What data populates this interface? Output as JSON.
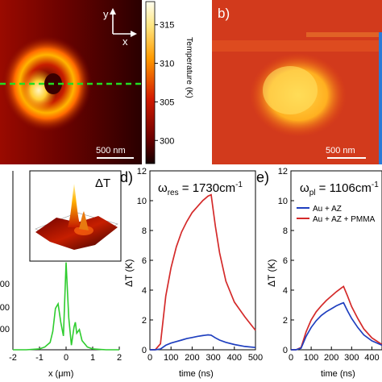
{
  "panel_a": {
    "axis_y": "y",
    "axis_x": "x",
    "scalebar": "500 nm",
    "colorbar": {
      "label": "Temperature (K)",
      "ticks": [
        "315",
        "310",
        "305",
        "300"
      ]
    }
  },
  "panel_b": {
    "label": "b)",
    "scalebar": "500 nm"
  },
  "panel_c": {
    "inset_label": "ΔT",
    "xlabel": "x (μm)",
    "xticks": [
      "-2",
      "-1",
      "0",
      "1",
      "2"
    ],
    "yticks": [
      "00",
      "00",
      "00"
    ]
  },
  "panel_d": {
    "label": "d)",
    "title": "ωres = 1730cm-1",
    "title_main": "ω",
    "title_sub": "res",
    "title_rest": " = 1730cm",
    "title_sup": "-1",
    "ylabel": "ΔT (K)",
    "xlabel": "time (ns)",
    "yticks": [
      "0",
      "2",
      "4",
      "6",
      "8",
      "10",
      "12"
    ],
    "xticks": [
      "0",
      "100",
      "200",
      "300",
      "400",
      "500"
    ]
  },
  "panel_e": {
    "label": "e)",
    "title": "ωpl = 1106cm-1",
    "title_main": "ω",
    "title_sub": "pl",
    "title_rest": " = 1106cm",
    "title_sup": "-1",
    "ylabel": "ΔT (K)",
    "xlabel": "time (ns)",
    "yticks": [
      "0",
      "2",
      "4",
      "6",
      "8",
      "10",
      "12"
    ],
    "xticks": [
      "0",
      "100",
      "200",
      "300",
      "400"
    ]
  },
  "colors": {
    "red": "#d42a2a",
    "blue": "#1f3fbf",
    "green": "#2ecc2e",
    "dashed_line": "#22dd22"
  },
  "chart_data": [
    {
      "type": "heatmap",
      "panel": "a",
      "description_values": "temperature map, colorbar range ~297 to ~318 K",
      "colorbar_range": [
        297,
        318
      ],
      "colorbar_label": "Temperature (K)"
    },
    {
      "type": "heatmap",
      "panel": "b"
    },
    {
      "type": "line",
      "panel": "c",
      "xlabel": "x (μm)",
      "xlim": [
        -2,
        2
      ],
      "x": [
        -2.0,
        -1.5,
        -1.0,
        -0.8,
        -0.6,
        -0.5,
        -0.4,
        -0.3,
        -0.2,
        -0.1,
        0.0,
        0.1,
        0.2,
        0.3,
        0.35,
        0.4,
        0.5,
        0.6,
        0.8,
        1.0,
        1.5,
        2.0
      ],
      "series": [
        {
          "values": [
            0.0,
            0.0,
            0.01,
            0.03,
            0.08,
            0.2,
            0.45,
            0.5,
            0.3,
            0.15,
            0.95,
            0.35,
            0.05,
            0.25,
            0.3,
            0.18,
            0.22,
            0.1,
            0.03,
            0.01,
            0.0,
            0.0
          ]
        }
      ]
    },
    {
      "type": "line",
      "panel": "d",
      "xlabel": "time (ns)",
      "ylabel": "ΔT (K)",
      "xlim": [
        0,
        500
      ],
      "ylim": [
        0,
        12
      ],
      "x": [
        0,
        25,
        50,
        75,
        100,
        125,
        150,
        175,
        200,
        225,
        250,
        275,
        290,
        310,
        330,
        360,
        400,
        450,
        500
      ],
      "series": [
        {
          "color": "red",
          "values": [
            0.0,
            0.0,
            0.4,
            3.6,
            5.5,
            6.9,
            7.9,
            8.6,
            9.2,
            9.6,
            10.0,
            10.3,
            10.4,
            8.3,
            6.5,
            4.6,
            3.2,
            2.2,
            1.3
          ]
        },
        {
          "color": "blue",
          "values": [
            0.0,
            0.0,
            0.05,
            0.3,
            0.45,
            0.55,
            0.65,
            0.75,
            0.82,
            0.9,
            0.95,
            1.0,
            0.98,
            0.8,
            0.65,
            0.5,
            0.35,
            0.22,
            0.15
          ]
        }
      ]
    },
    {
      "type": "line",
      "panel": "e",
      "xlabel": "time (ns)",
      "ylabel": "ΔT (K)",
      "xlim": [
        0,
        450
      ],
      "ylim": [
        0,
        12
      ],
      "legend": {
        "position": "top-right",
        "entries": [
          "Au + AZ",
          "Au + AZ + PMMA"
        ]
      },
      "x": [
        0,
        25,
        50,
        75,
        100,
        125,
        150,
        175,
        200,
        225,
        250,
        260,
        280,
        300,
        330,
        360,
        400,
        450
      ],
      "series": [
        {
          "name": "Au + AZ",
          "color": "blue",
          "values": [
            0.0,
            0.0,
            0.1,
            0.9,
            1.5,
            1.95,
            2.3,
            2.55,
            2.75,
            2.95,
            3.1,
            3.15,
            2.6,
            2.1,
            1.5,
            1.0,
            0.6,
            0.3
          ]
        },
        {
          "name": "Au + AZ + PMMA",
          "color": "red",
          "values": [
            0.0,
            0.0,
            0.15,
            1.2,
            2.0,
            2.55,
            2.95,
            3.3,
            3.6,
            3.9,
            4.15,
            4.25,
            3.6,
            2.9,
            2.1,
            1.4,
            0.8,
            0.35
          ]
        }
      ]
    }
  ]
}
